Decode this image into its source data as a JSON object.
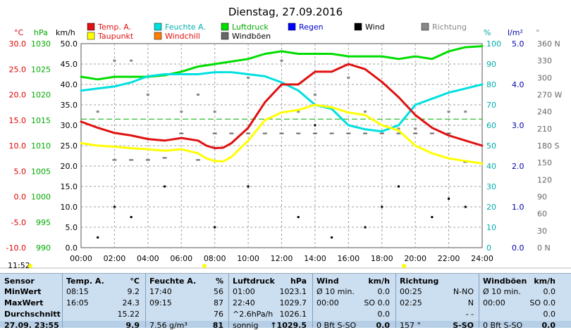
{
  "page": {
    "title": "Dienstag, 27.09.2016"
  },
  "colors": {
    "temp": "#e01010",
    "dew": "#ffff00",
    "humidity": "#00e0e0",
    "pressure": "#00dd00",
    "rain": "#0000ff",
    "wind": "#000000",
    "direction": "#888888",
    "gusts": "#666666",
    "windchill": "#ff7f00",
    "grid": "#a0a0a0",
    "axis_temp": "#e00000",
    "axis_hpa": "#00aa00",
    "axis_pct": "#00aaaa",
    "axis_rain": "#0000aa",
    "table_bg": "#ccdff1"
  },
  "legend": {
    "temp": "Temp. A.",
    "humidity": "Feuchte A.",
    "pressure": "Luftdruck",
    "rain": "Regen",
    "wind": "Wind",
    "direction": "Richtung",
    "dew": "Taupunkt",
    "windchill": "Windchill",
    "gusts": "Windböen"
  },
  "axes": {
    "celsius_title": "°C",
    "hpa_title": "hPa",
    "kmh_title": "km/h",
    "pct_title": "%",
    "rain_title": "l/m²",
    "deg_title": "°",
    "celsius_ticks": [
      "30.0",
      "25.0",
      "20.0",
      "15.0",
      "10.0",
      "5.0",
      "0.0",
      "-5.0",
      "-10.0"
    ],
    "hpa_ticks": [
      "1030",
      "1025",
      "1020",
      "1015",
      "1010",
      "1005",
      "1000",
      "995",
      "990"
    ],
    "kmh_ticks": [
      "50.0",
      "45.0",
      "40.0",
      "35.0",
      "30.0",
      "25.0",
      "20.0",
      "15.0",
      "10.0",
      "5.0",
      "0.0"
    ],
    "pct_ticks": [
      "100",
      "90",
      "80",
      "70",
      "60",
      "50",
      "40",
      "30",
      "20",
      "10",
      "0"
    ],
    "rain_ticks": [
      "5.0",
      "4.0",
      "3.0",
      "2.0",
      "1.0",
      "0.0"
    ],
    "deg_ticks": [
      "360 N",
      "330",
      "300",
      "270 W",
      "240",
      "210",
      "180 S",
      "150",
      "120",
      "90",
      "60",
      "30",
      "0 N"
    ],
    "x_ticks": [
      "00:00",
      "02:00",
      "04:00",
      "06:00",
      "08:00",
      "10:00",
      "12:00",
      "14:00",
      "16:00",
      "18:00",
      "20:00",
      "22:00",
      "24:00"
    ]
  },
  "footer": {
    "clock": "11:52"
  },
  "chart_data": {
    "type": "line",
    "title": "Dienstag, 27.09.2016",
    "x_unit": "hours",
    "xlim": [
      0,
      24
    ],
    "series": [
      {
        "name": "Temp. A.",
        "axis": "celsius",
        "ylim": [
          -10,
          30
        ],
        "x": [
          0,
          1,
          2,
          3,
          4,
          5,
          6,
          7,
          7.5,
          8,
          8.5,
          9,
          10,
          11,
          12,
          13,
          14,
          15,
          16,
          17,
          18,
          19,
          20,
          21,
          22,
          23,
          24
        ],
        "y": [
          14.7,
          13.5,
          12.5,
          12.0,
          11.3,
          11.0,
          11.5,
          11.0,
          10.0,
          9.5,
          9.6,
          10.5,
          13.5,
          18.5,
          22.0,
          22.0,
          24.5,
          24.5,
          26.0,
          25.0,
          22.5,
          19.5,
          16.0,
          13.5,
          12.0,
          11.0,
          10.0
        ]
      },
      {
        "name": "Taupunkt",
        "axis": "celsius",
        "ylim": [
          -10,
          30
        ],
        "x": [
          0,
          1,
          2,
          3,
          4,
          5,
          6,
          7,
          7.5,
          8,
          8.5,
          9,
          10,
          11,
          12,
          13,
          14,
          15,
          16,
          17,
          18,
          19,
          20,
          21,
          22,
          23,
          24
        ],
        "y": [
          10.5,
          10.0,
          9.8,
          9.5,
          9.3,
          9.0,
          9.3,
          8.5,
          7.5,
          7.0,
          6.9,
          7.8,
          11.0,
          15.0,
          16.5,
          17.0,
          18.0,
          17.5,
          16.5,
          16.0,
          14.0,
          13.0,
          10.0,
          8.5,
          7.5,
          7.0,
          6.5
        ]
      },
      {
        "name": "Feuchte A.",
        "axis": "percent",
        "ylim": [
          0,
          100
        ],
        "x": [
          0,
          1,
          2,
          3,
          4,
          5,
          6,
          7,
          8,
          9,
          10,
          11,
          12,
          13,
          14,
          15,
          16,
          17,
          18,
          19,
          20,
          21,
          22,
          23,
          24
        ],
        "y": [
          77,
          78,
          79,
          81,
          84,
          85,
          85,
          85,
          86,
          86,
          85,
          84,
          81,
          77,
          70,
          68,
          60,
          58,
          57,
          60,
          70,
          73,
          76,
          78,
          80
        ]
      },
      {
        "name": "Luftdruck",
        "axis": "hpa",
        "ylim": [
          990,
          1030
        ],
        "x": [
          0,
          1,
          2,
          3,
          4,
          5,
          6,
          7,
          8,
          9,
          10,
          11,
          12,
          13,
          14,
          15,
          16,
          17,
          18,
          19,
          20,
          21,
          22,
          23,
          24
        ],
        "y": [
          1023.5,
          1023.0,
          1023.5,
          1023.5,
          1023.5,
          1023.8,
          1024.5,
          1025.5,
          1026.0,
          1026.5,
          1027.0,
          1028.0,
          1028.5,
          1028.0,
          1028.0,
          1028.0,
          1027.5,
          1027.5,
          1027.5,
          1027.0,
          1027.5,
          1027.0,
          1028.5,
          1029.3,
          1029.5
        ]
      },
      {
        "name": "Wind",
        "axis": "kmh",
        "ylim": [
          0,
          50
        ],
        "x": [
          1,
          2,
          3,
          5,
          8,
          10,
          13,
          14,
          15,
          17,
          18,
          19,
          21,
          22,
          23
        ],
        "y": [
          2.5,
          10,
          7.5,
          15,
          5,
          15,
          7.5,
          30,
          2.5,
          5,
          10,
          15,
          7.5,
          12,
          10
        ]
      },
      {
        "name": "Windböen",
        "axis": "kmh",
        "ylim": [
          0,
          50
        ],
        "x": [
          2,
          3,
          4,
          5,
          6,
          7,
          8,
          9,
          10,
          11,
          12,
          13,
          14,
          15,
          16,
          17,
          18,
          19,
          20,
          21,
          22,
          23
        ],
        "y": [
          21.5,
          21.5,
          21.5,
          22,
          28,
          21.5,
          28,
          28,
          28,
          28,
          28,
          28,
          28,
          28,
          28,
          28,
          28,
          28,
          28,
          28,
          28,
          21
        ]
      },
      {
        "name": "Richtung",
        "axis": "degrees",
        "ylim": [
          0,
          360
        ],
        "x": [
          1,
          2,
          3,
          4,
          6,
          7,
          8,
          10,
          12,
          13,
          14,
          16,
          17,
          19,
          20,
          22,
          23
        ],
        "y": [
          240,
          330,
          330,
          270,
          240,
          270,
          240,
          300,
          330,
          240,
          270,
          300,
          240,
          210,
          210,
          240,
          240
        ]
      }
    ],
    "reference_line": {
      "axis": "celsius",
      "value": 15.2,
      "label": "Durchschnitt"
    },
    "table": {
      "headers": [
        "Sensor",
        "Temp. A.",
        "°C",
        "Feuchte A.",
        "%",
        "Luftdruck",
        "hPa",
        "Wind",
        "km/h",
        "Richtung",
        "Windböen",
        "km/h"
      ],
      "rows": [
        {
          "label": "MinWert",
          "cells": [
            "08:15",
            "9.2",
            "17:40",
            "56",
            "01:00",
            "1023.1",
            "Ø 10 min.",
            "0.0",
            "00:25",
            "N-NO",
            "Ø 10 min.",
            "0.0"
          ]
        },
        {
          "label": "MaxWert",
          "cells": [
            "16:05",
            "24.3",
            "09:15",
            "87",
            "22:40",
            "1029.7",
            "00:00",
            "SO 0.0",
            "02:25",
            "N",
            "00:00",
            "SO 0.0"
          ]
        },
        {
          "label": "Durchschnitt",
          "cells": [
            "",
            "15.22",
            "",
            "76",
            "^2.6hPa/h",
            "1026.1",
            "",
            "0.0",
            "",
            "- -",
            "",
            "0.0"
          ]
        },
        {
          "label": "27.09. 23:55",
          "cells": [
            "",
            "9.9",
            "7.56 g/m³",
            "81",
            "sonnig",
            "↑1029.5",
            "0 Bft S-SO",
            "0.0",
            "157 °",
            "S-SO",
            "0 Bft S-SO",
            "0.0"
          ]
        }
      ]
    }
  }
}
